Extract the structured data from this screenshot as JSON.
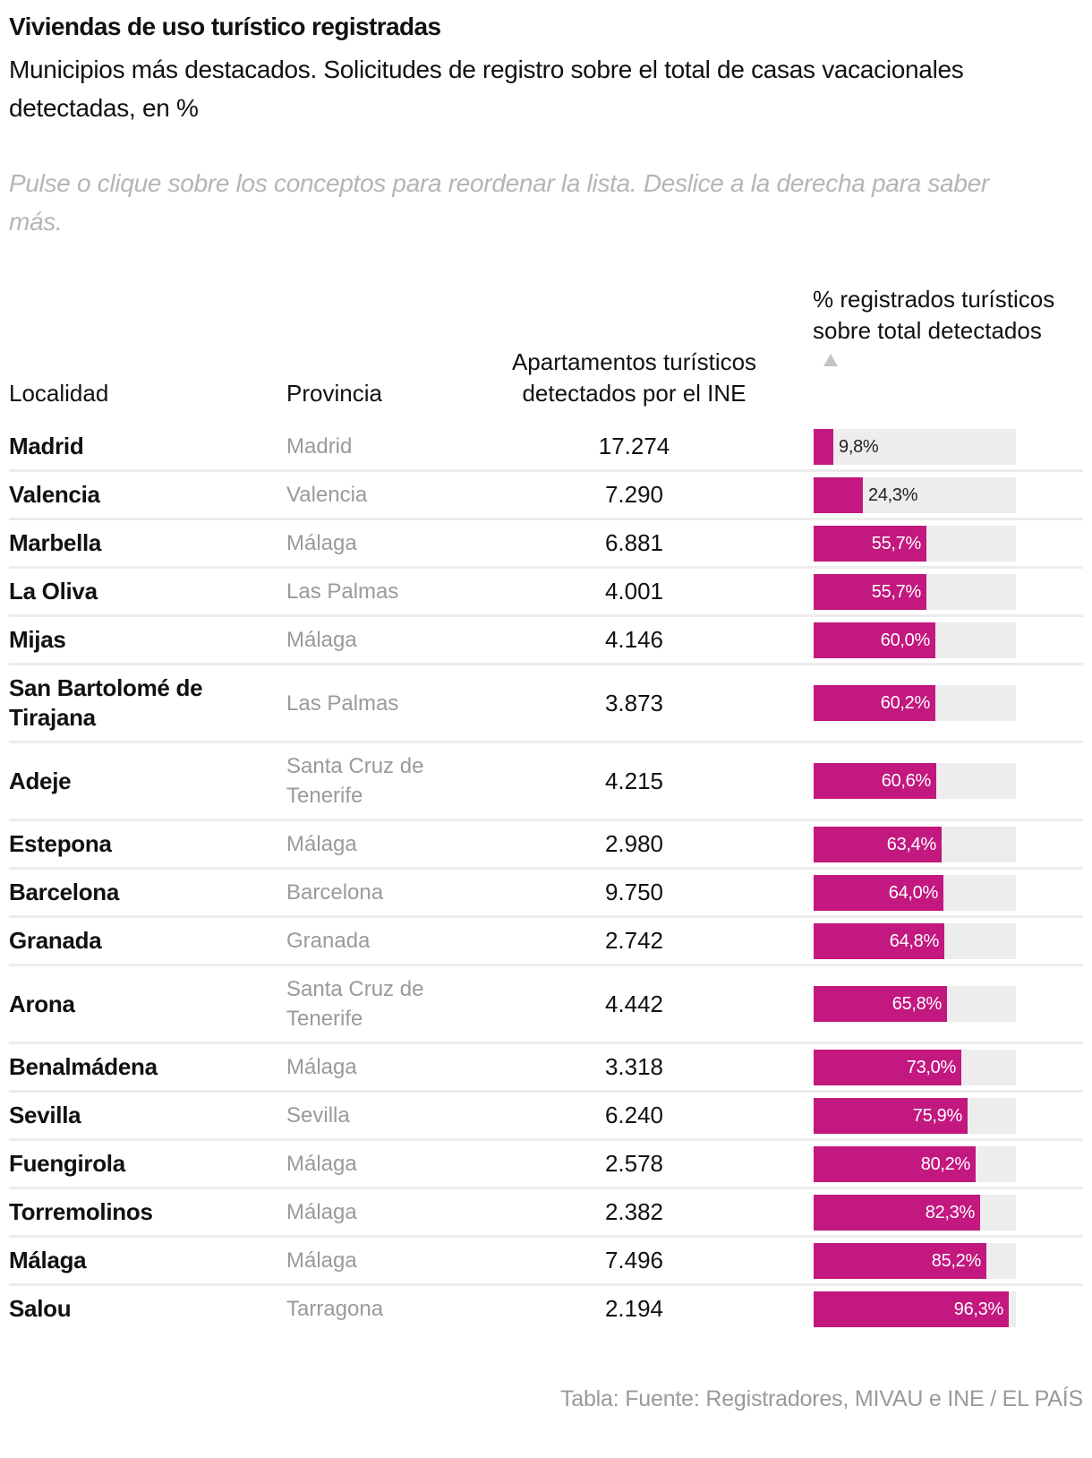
{
  "header": {
    "title": "Viviendas de uso turístico registradas",
    "subtitle": "Municipios más destacados. Solicitudes de registro sobre el total de casas vacacionales detectadas, en %",
    "hint": "Pulse o clique sobre los conceptos para reordenar la lista. Deslice a la derecha para saber más."
  },
  "table": {
    "columns": {
      "localidad": "Localidad",
      "provincia": "Provincia",
      "apartamentos": "Apartamentos turísticos detectados por el INE",
      "porcentaje": "% registrados turísticos sobre total detectados"
    },
    "sort": {
      "column": "porcentaje",
      "direction": "ascending",
      "icon": "sort-ascending-triangle-icon"
    },
    "bar_color": "#c2187f",
    "track_color": "#ededed"
  },
  "chart_data": {
    "type": "table",
    "title": "Viviendas de uso turístico registradas",
    "subtitle": "Municipios más destacados. Solicitudes de registro sobre el total de casas vacacionales detectadas, en %",
    "columns": [
      "Localidad",
      "Provincia",
      "Apartamentos turísticos detectados por el INE",
      "% registrados turísticos sobre total detectados"
    ],
    "bar_range": [
      0,
      100
    ],
    "rows": [
      {
        "localidad": "Madrid",
        "provincia": "Madrid",
        "apartamentos": "17.274",
        "pct": 9.8,
        "pct_label": "9,8%"
      },
      {
        "localidad": "Valencia",
        "provincia": "Valencia",
        "apartamentos": "7.290",
        "pct": 24.3,
        "pct_label": "24,3%"
      },
      {
        "localidad": "Marbella",
        "provincia": "Málaga",
        "apartamentos": "6.881",
        "pct": 55.7,
        "pct_label": "55,7%"
      },
      {
        "localidad": "La Oliva",
        "provincia": "Las Palmas",
        "apartamentos": "4.001",
        "pct": 55.7,
        "pct_label": "55,7%"
      },
      {
        "localidad": "Mijas",
        "provincia": "Málaga",
        "apartamentos": "4.146",
        "pct": 60.0,
        "pct_label": "60,0%"
      },
      {
        "localidad": "San Bartolomé de Tirajana",
        "provincia": "Las Palmas",
        "apartamentos": "3.873",
        "pct": 60.2,
        "pct_label": "60,2%"
      },
      {
        "localidad": "Adeje",
        "provincia": "Santa Cruz de Tenerife",
        "apartamentos": "4.215",
        "pct": 60.6,
        "pct_label": "60,6%"
      },
      {
        "localidad": "Estepona",
        "provincia": "Málaga",
        "apartamentos": "2.980",
        "pct": 63.4,
        "pct_label": "63,4%"
      },
      {
        "localidad": "Barcelona",
        "provincia": "Barcelona",
        "apartamentos": "9.750",
        "pct": 64.0,
        "pct_label": "64,0%"
      },
      {
        "localidad": "Granada",
        "provincia": "Granada",
        "apartamentos": "2.742",
        "pct": 64.8,
        "pct_label": "64,8%"
      },
      {
        "localidad": "Arona",
        "provincia": "Santa Cruz de Tenerife",
        "apartamentos": "4.442",
        "pct": 65.8,
        "pct_label": "65,8%"
      },
      {
        "localidad": "Benalmádena",
        "provincia": "Málaga",
        "apartamentos": "3.318",
        "pct": 73.0,
        "pct_label": "73,0%"
      },
      {
        "localidad": "Sevilla",
        "provincia": "Sevilla",
        "apartamentos": "6.240",
        "pct": 75.9,
        "pct_label": "75,9%"
      },
      {
        "localidad": "Fuengirola",
        "provincia": "Málaga",
        "apartamentos": "2.578",
        "pct": 80.2,
        "pct_label": "80,2%"
      },
      {
        "localidad": "Torremolinos",
        "provincia": "Málaga",
        "apartamentos": "2.382",
        "pct": 82.3,
        "pct_label": "82,3%"
      },
      {
        "localidad": "Málaga",
        "provincia": "Málaga",
        "apartamentos": "7.496",
        "pct": 85.2,
        "pct_label": "85,2%"
      },
      {
        "localidad": "Salou",
        "provincia": "Tarragona",
        "apartamentos": "2.194",
        "pct": 96.3,
        "pct_label": "96,3%"
      }
    ]
  },
  "footer": {
    "source": "Tabla: Fuente: Registradores, MIVAU e INE / EL PAÍS"
  }
}
